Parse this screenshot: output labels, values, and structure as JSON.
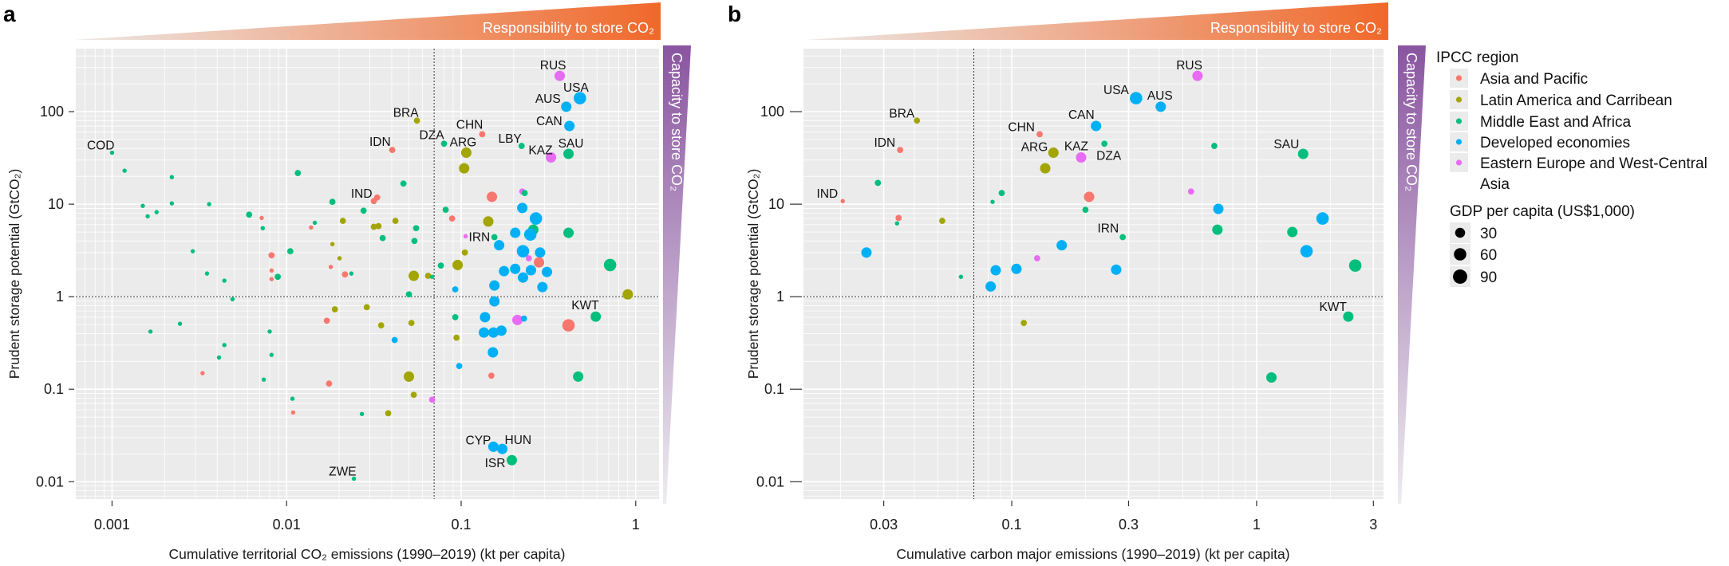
{
  "panels": [
    {
      "label": "a"
    },
    {
      "label": "b"
    }
  ],
  "banners": {
    "responsibility": "Responsibility to store CO₂",
    "capacity": "Capacity to store CO₂",
    "responsibility_color": "#f0682a",
    "capacity_color": "#8a55a0"
  },
  "legend": {
    "region_title": "IPCC region",
    "regions": [
      {
        "label": "Asia and Pacific",
        "color": "#F8766D"
      },
      {
        "label": "Latin America and Carribean",
        "color": "#A3A500"
      },
      {
        "label": "Middle East and Africa",
        "color": "#00BF7D"
      },
      {
        "label": "Developed economies",
        "color": "#00B0F6"
      },
      {
        "label": "Eastern Europe and West-Central Asia",
        "color": "#E76BF3"
      }
    ],
    "size_title": "GDP per capita (US$1,000)",
    "sizes": [
      {
        "label": "30",
        "value": 30
      },
      {
        "label": "60",
        "value": 60
      },
      {
        "label": "90",
        "value": 90
      }
    ]
  },
  "chart_data": [
    {
      "type": "scatter",
      "panel": "a",
      "xlabel": "Cumulative territorial CO₂ emissions (1990–2019) (kt per capita)",
      "ylabel": "Prudent storage potential (GtCO₂)",
      "xscale": "log",
      "yscale": "log",
      "xlim": [
        0.00062,
        1.36
      ],
      "ylim": [
        0.0065,
        480
      ],
      "xticks": [
        0.001,
        0.01,
        0.1,
        1
      ],
      "xtick_labels": [
        "0.001",
        "0.01",
        "0.1",
        "1"
      ],
      "yticks": [
        0.01,
        0.1,
        1,
        10,
        100
      ],
      "ytick_labels": [
        "0.01",
        "0.1",
        "1",
        "10",
        "100"
      ],
      "reference_lines": {
        "x": 0.07,
        "y": 1
      },
      "grid": true,
      "fields": [
        "x",
        "y",
        "region_index",
        "gdp_per_capita",
        "label"
      ],
      "points": [
        [
          0.001,
          36,
          2,
          2,
          "COD"
        ],
        [
          0.00118,
          23,
          2,
          2
        ],
        [
          0.0022,
          19.6,
          2,
          2
        ],
        [
          0.0015,
          9.6,
          2,
          2
        ],
        [
          0.0016,
          7.4,
          2,
          2
        ],
        [
          0.0018,
          8.2,
          2,
          2
        ],
        [
          0.0022,
          10.2,
          2,
          2
        ],
        [
          0.0036,
          10,
          2,
          2
        ],
        [
          0.0061,
          7.7,
          2,
          10
        ],
        [
          0.0072,
          7.1,
          0,
          2
        ],
        [
          0.0116,
          21.7,
          2,
          10
        ],
        [
          0.0183,
          10.6,
          2,
          10
        ],
        [
          0.0145,
          6.3,
          2,
          2
        ],
        [
          0.0558,
          80,
          1,
          10,
          "BRA"
        ],
        [
          0.0403,
          38.5,
          0,
          10,
          "IDN"
        ],
        [
          0.0798,
          45,
          2,
          10,
          "DZA"
        ],
        [
          0.107,
          36,
          1,
          50,
          "ARG"
        ],
        [
          0.104,
          24.4,
          1,
          50
        ],
        [
          0.132,
          57,
          0,
          10,
          "CHN"
        ],
        [
          0.0467,
          16.7,
          2,
          10
        ],
        [
          0.0316,
          10.8,
          0,
          10,
          "IND"
        ],
        [
          0.033,
          11.8,
          0,
          10
        ],
        [
          0.0276,
          8.5,
          2,
          10
        ],
        [
          0.0815,
          8.7,
          2,
          10
        ],
        [
          0.0887,
          7.0,
          0,
          10
        ],
        [
          0.021,
          6.6,
          1,
          10
        ],
        [
          0.0316,
          5.7,
          1,
          10
        ],
        [
          0.0336,
          5.8,
          1,
          10
        ],
        [
          0.042,
          6.6,
          1,
          10
        ],
        [
          0.143,
          6.5,
          1,
          50
        ],
        [
          0.0552,
          5.5,
          2,
          10
        ],
        [
          0.0355,
          4.3,
          2,
          10
        ],
        [
          0.054,
          4.0,
          2,
          10
        ],
        [
          0.0183,
          3.7,
          1,
          2
        ],
        [
          0.0201,
          2.6,
          1,
          2
        ],
        [
          0.0179,
          2.1,
          0,
          2
        ],
        [
          0.0216,
          1.74,
          0,
          10
        ],
        [
          0.0235,
          1.78,
          2,
          2
        ],
        [
          0.0535,
          1.68,
          1,
          50
        ],
        [
          0.0647,
          1.68,
          1,
          10
        ],
        [
          0.0682,
          1.64,
          2,
          2
        ],
        [
          0.0765,
          2.17,
          2,
          10
        ],
        [
          0.0502,
          1.06,
          2,
          10
        ],
        [
          0.0189,
          0.73,
          1,
          10
        ],
        [
          0.0288,
          0.77,
          1,
          10
        ],
        [
          0.017,
          0.55,
          0,
          10
        ],
        [
          0.0348,
          0.49,
          1,
          10
        ],
        [
          0.0519,
          0.52,
          1,
          10
        ],
        [
          0.0416,
          0.34,
          3,
          10
        ],
        [
          0.0175,
          0.115,
          0,
          10
        ],
        [
          0.0502,
          0.137,
          1,
          50
        ],
        [
          0.0535,
          0.087,
          1,
          10
        ],
        [
          0.0682,
          0.077,
          4,
          10
        ],
        [
          0.027,
          0.054,
          2,
          2
        ],
        [
          0.0382,
          0.055,
          1,
          10
        ],
        [
          0.0243,
          0.0108,
          2,
          2,
          "ZWE"
        ],
        [
          0.0073,
          5.5,
          2,
          2
        ],
        [
          0.0138,
          5.6,
          0,
          2
        ],
        [
          0.0029,
          3.1,
          2,
          2
        ],
        [
          0.0082,
          2.8,
          0,
          10
        ],
        [
          0.0105,
          3.1,
          2,
          10
        ],
        [
          0.0035,
          1.78,
          2,
          2
        ],
        [
          0.0044,
          1.49,
          2,
          2
        ],
        [
          0.0082,
          1.92,
          0,
          2
        ],
        [
          0.0082,
          1.55,
          0,
          2
        ],
        [
          0.0089,
          1.64,
          2,
          10
        ],
        [
          0.0049,
          0.94,
          2,
          2
        ],
        [
          0.00166,
          0.42,
          2,
          2
        ],
        [
          0.00245,
          0.51,
          2,
          2
        ],
        [
          0.008,
          0.42,
          2,
          2
        ],
        [
          0.0044,
          0.3,
          2,
          2
        ],
        [
          0.0082,
          0.235,
          2,
          2
        ],
        [
          0.0041,
          0.22,
          2,
          2
        ],
        [
          0.0033,
          0.149,
          0,
          2
        ],
        [
          0.0074,
          0.127,
          2,
          2
        ],
        [
          0.0108,
          0.079,
          2,
          2
        ],
        [
          0.0109,
          0.056,
          0,
          2
        ],
        [
          0.367,
          244,
          4,
          50,
          "RUS"
        ],
        [
          0.479,
          140,
          3,
          80,
          "USA"
        ],
        [
          0.4,
          113,
          3,
          50,
          "AUS"
        ],
        [
          0.417,
          70,
          3,
          50,
          "CAN"
        ],
        [
          0.222,
          42.6,
          2,
          10,
          "LBY"
        ],
        [
          0.327,
          32,
          4,
          50,
          "KAZ"
        ],
        [
          0.412,
          35,
          2,
          50,
          "SAU"
        ],
        [
          0.224,
          13.7,
          4,
          10
        ],
        [
          0.231,
          13.2,
          2,
          10
        ],
        [
          0.15,
          12,
          0,
          50
        ],
        [
          0.224,
          9.1,
          3,
          50
        ],
        [
          0.268,
          7.0,
          3,
          80
        ],
        [
          0.259,
          5.3,
          2,
          50
        ],
        [
          0.412,
          4.9,
          2,
          50
        ],
        [
          0.204,
          4.9,
          3,
          50
        ],
        [
          0.249,
          4.7,
          3,
          80
        ],
        [
          0.106,
          4.5,
          4,
          2,
          "IRN"
        ],
        [
          0.155,
          4.4,
          2,
          10
        ],
        [
          0.165,
          3.6,
          3,
          50
        ],
        [
          0.105,
          3.0,
          1,
          10
        ],
        [
          0.226,
          3.1,
          3,
          80
        ],
        [
          0.283,
          3.0,
          3,
          50
        ],
        [
          0.244,
          2.6,
          4,
          10
        ],
        [
          0.279,
          2.35,
          0,
          50
        ],
        [
          0.0955,
          2.2,
          1,
          50
        ],
        [
          0.713,
          2.2,
          2,
          80
        ],
        [
          0.176,
          1.89,
          3,
          50
        ],
        [
          0.204,
          2.0,
          3,
          50
        ],
        [
          0.251,
          1.93,
          3,
          50
        ],
        [
          0.31,
          1.85,
          3,
          50
        ],
        [
          0.226,
          1.61,
          3,
          50
        ],
        [
          0.155,
          1.32,
          3,
          50
        ],
        [
          0.292,
          1.27,
          3,
          50
        ],
        [
          0.0925,
          1.2,
          3,
          10
        ],
        [
          0.9,
          1.06,
          1,
          50
        ],
        [
          0.155,
          0.89,
          3,
          50
        ],
        [
          0.59,
          0.61,
          2,
          50,
          "KWT"
        ],
        [
          0.412,
          0.49,
          0,
          80
        ],
        [
          0.0925,
          0.6,
          2,
          10
        ],
        [
          0.137,
          0.6,
          3,
          50
        ],
        [
          0.21,
          0.56,
          4,
          50
        ],
        [
          0.229,
          0.58,
          3,
          10
        ],
        [
          0.135,
          0.41,
          3,
          50
        ],
        [
          0.153,
          0.41,
          3,
          50
        ],
        [
          0.17,
          0.43,
          3,
          50
        ],
        [
          0.094,
          0.36,
          1,
          10
        ],
        [
          0.152,
          0.25,
          3,
          50
        ],
        [
          0.0975,
          0.178,
          3,
          10
        ],
        [
          0.149,
          0.14,
          0,
          10
        ],
        [
          0.468,
          0.137,
          2,
          50
        ],
        [
          0.153,
          0.0239,
          3,
          50,
          "CYP"
        ],
        [
          0.172,
          0.0226,
          3,
          50,
          "HUN"
        ],
        [
          0.195,
          0.0171,
          2,
          50,
          "ISR"
        ]
      ]
    },
    {
      "type": "scatter",
      "panel": "b",
      "xlabel": "Cumulative carbon major emissions (1990–2019) (kt per capita)",
      "ylabel": "Prudent storage potential (GtCO₂)",
      "xscale": "log",
      "yscale": "log",
      "xlim": [
        0.0141,
        3.3
      ],
      "ylim": [
        0.0065,
        480
      ],
      "xticks": [
        0.03,
        0.1,
        0.3,
        1,
        3
      ],
      "xtick_labels": [
        "0.03",
        "0.1",
        "0.3",
        "1",
        "3"
      ],
      "yticks": [
        0.01,
        0.1,
        1,
        10,
        100
      ],
      "ytick_labels": [
        "0.01",
        "0.1",
        "1",
        "10",
        "100"
      ],
      "reference_lines": {
        "x": 0.07,
        "y": 1
      },
      "grid": true,
      "fields": [
        "x",
        "y",
        "region_index",
        "gdp_per_capita",
        "label"
      ],
      "points": [
        [
          0.041,
          80,
          1,
          10,
          "BRA"
        ],
        [
          0.035,
          38.5,
          0,
          10,
          "IDN"
        ],
        [
          0.0204,
          10.8,
          0,
          2,
          "IND"
        ],
        [
          0.0284,
          17,
          2,
          10
        ],
        [
          0.0345,
          7.1,
          0,
          10
        ],
        [
          0.034,
          6.2,
          2,
          2
        ],
        [
          0.052,
          6.6,
          1,
          10
        ],
        [
          0.0255,
          3.0,
          3,
          50
        ],
        [
          0.062,
          1.64,
          2,
          2
        ],
        [
          0.0835,
          10.6,
          2,
          2
        ],
        [
          0.091,
          13.2,
          2,
          10
        ],
        [
          0.086,
          1.93,
          3,
          50
        ],
        [
          0.082,
          1.29,
          3,
          50
        ],
        [
          0.1045,
          2.0,
          3,
          50
        ],
        [
          0.127,
          2.6,
          4,
          10
        ],
        [
          0.16,
          3.6,
          3,
          50
        ],
        [
          0.112,
          0.52,
          1,
          10
        ],
        [
          0.13,
          57,
          0,
          10,
          "CHN"
        ],
        [
          0.148,
          36,
          1,
          50,
          "ARG"
        ],
        [
          0.137,
          24.4,
          1,
          50
        ],
        [
          0.192,
          32,
          4,
          50,
          "KAZ"
        ],
        [
          0.207,
          12,
          0,
          50
        ],
        [
          0.2,
          8.7,
          2,
          10
        ],
        [
          0.574,
          244,
          4,
          50,
          "RUS"
        ],
        [
          0.322,
          140,
          3,
          80,
          "USA"
        ],
        [
          0.406,
          113,
          3,
          50,
          "AUS"
        ],
        [
          0.221,
          70,
          3,
          50,
          "CAN"
        ],
        [
          0.239,
          45,
          2,
          10,
          "DZA"
        ],
        [
          0.672,
          42.6,
          2,
          10
        ],
        [
          1.55,
          35,
          2,
          50,
          "SAU"
        ],
        [
          0.54,
          13.7,
          4,
          10
        ],
        [
          0.698,
          8.9,
          3,
          50
        ],
        [
          0.284,
          4.4,
          2,
          10,
          "IRN"
        ],
        [
          0.692,
          5.3,
          2,
          50
        ],
        [
          1.4,
          5.0,
          2,
          50
        ],
        [
          1.86,
          7.0,
          3,
          80
        ],
        [
          1.6,
          3.1,
          3,
          80
        ],
        [
          2.53,
          2.17,
          2,
          80
        ],
        [
          0.267,
          1.96,
          3,
          50
        ],
        [
          2.37,
          0.61,
          2,
          50,
          "KWT"
        ],
        [
          1.15,
          0.134,
          2,
          50
        ]
      ]
    }
  ]
}
